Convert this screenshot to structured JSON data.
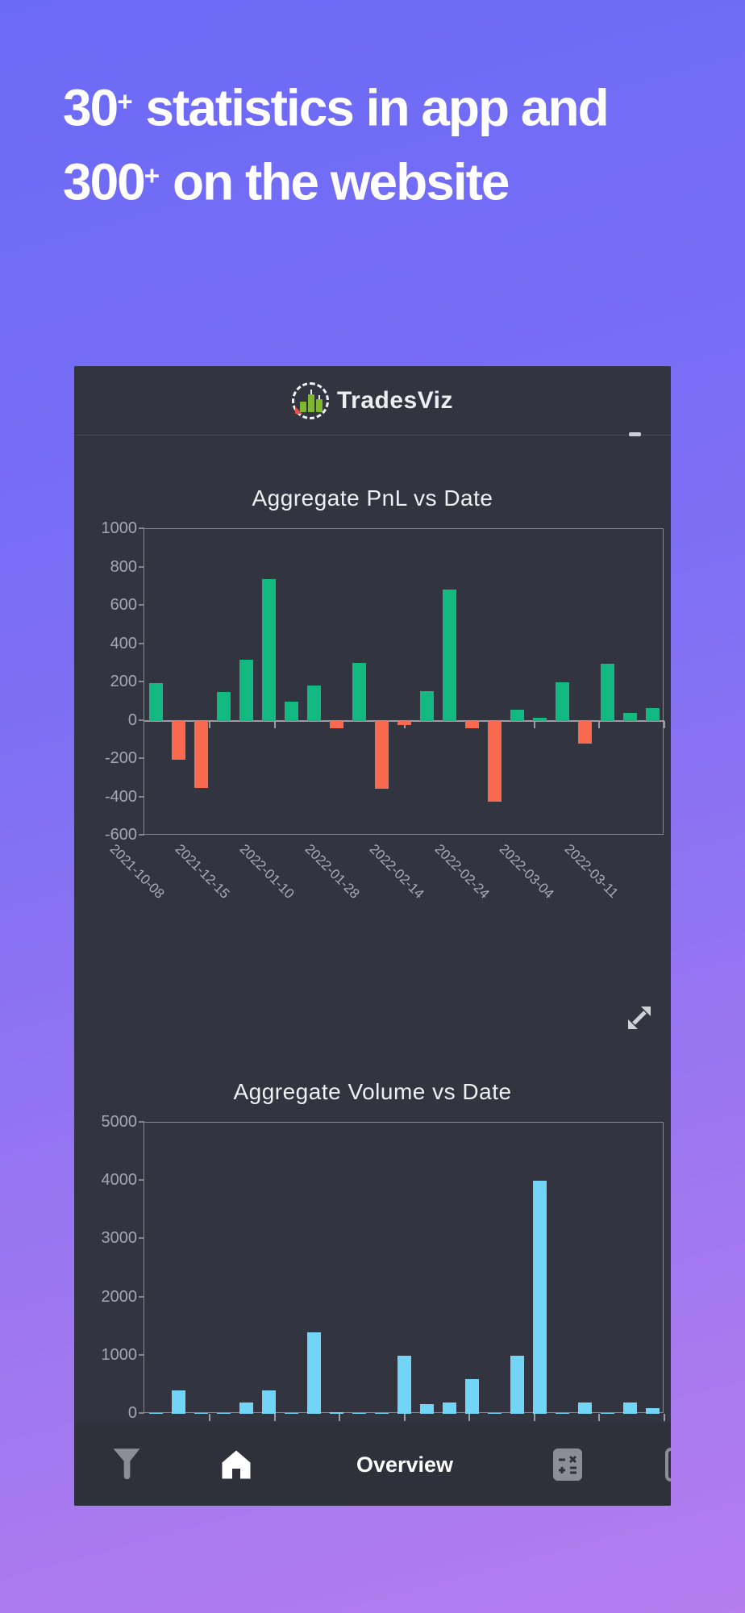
{
  "heading": {
    "lines": [
      "30+ statistics in app and",
      "300+ on the website"
    ]
  },
  "app": {
    "title": "TradesViz",
    "logo_icon": "candlestick-chart-logo-icon",
    "scrollbar_thumb": "horizontal-scrollbar-thumb",
    "expand_icon": "expand-diagonal-arrows-icon"
  },
  "chart_data": [
    {
      "type": "bar",
      "title": "Aggregate PnL vs Date",
      "xlabel": "",
      "ylabel": "",
      "ylim": [
        -600,
        1000
      ],
      "yticks": [
        1000,
        800,
        600,
        400,
        200,
        0,
        -200,
        -400,
        -600
      ],
      "grid": false,
      "legend": "none",
      "x_tick_labels": [
        "2021-10-08",
        "2021-12-15",
        "2022-01-10",
        "2022-01-28",
        "2022-02-14",
        "2022-02-24",
        "2022-03-04",
        "2022-03-11"
      ],
      "values": [
        195,
        -205,
        -350,
        150,
        320,
        740,
        100,
        185,
        -40,
        300,
        -355,
        -25,
        155,
        685,
        -40,
        -425,
        55,
        15,
        200,
        -120,
        295,
        40,
        65
      ],
      "positive_color": "#12b981",
      "negative_color": "#f8694e"
    },
    {
      "type": "bar",
      "title": "Aggregate Volume vs Date",
      "xlabel": "",
      "ylabel": "",
      "ylim": [
        0,
        5000
      ],
      "yticks": [
        5000,
        4000,
        3000,
        2000,
        1000,
        0
      ],
      "grid": false,
      "legend": "none",
      "x_tick_labels": [],
      "values": [
        0,
        400,
        20,
        10,
        200,
        400,
        0,
        1400,
        30,
        0,
        10,
        1000,
        160,
        190,
        600,
        0,
        1000,
        4000,
        0,
        200,
        10,
        200,
        100
      ],
      "bar_color": "#72d5f6"
    }
  ],
  "nav": {
    "overview_label": "Overview",
    "items": [
      {
        "icon": "filter-funnel-icon"
      },
      {
        "icon": "home-icon"
      },
      {
        "label": "Overview"
      },
      {
        "icon": "calculator-icon"
      },
      {
        "icon": "clipboard-icon"
      }
    ]
  },
  "colors": {
    "background_top": "#6b6af7",
    "background_bottom": "#b57dee",
    "phone_bg": "#32353f",
    "nav_bg": "#2e313a",
    "axis": "#85888f",
    "tick_text": "#a4a8b0",
    "title_text": "#eef0f3",
    "pnl_positive": "#12b981",
    "pnl_negative": "#f8694e",
    "volume_bar": "#72d5f6",
    "logo_green": "#7fb82e",
    "logo_red": "#e05252"
  }
}
